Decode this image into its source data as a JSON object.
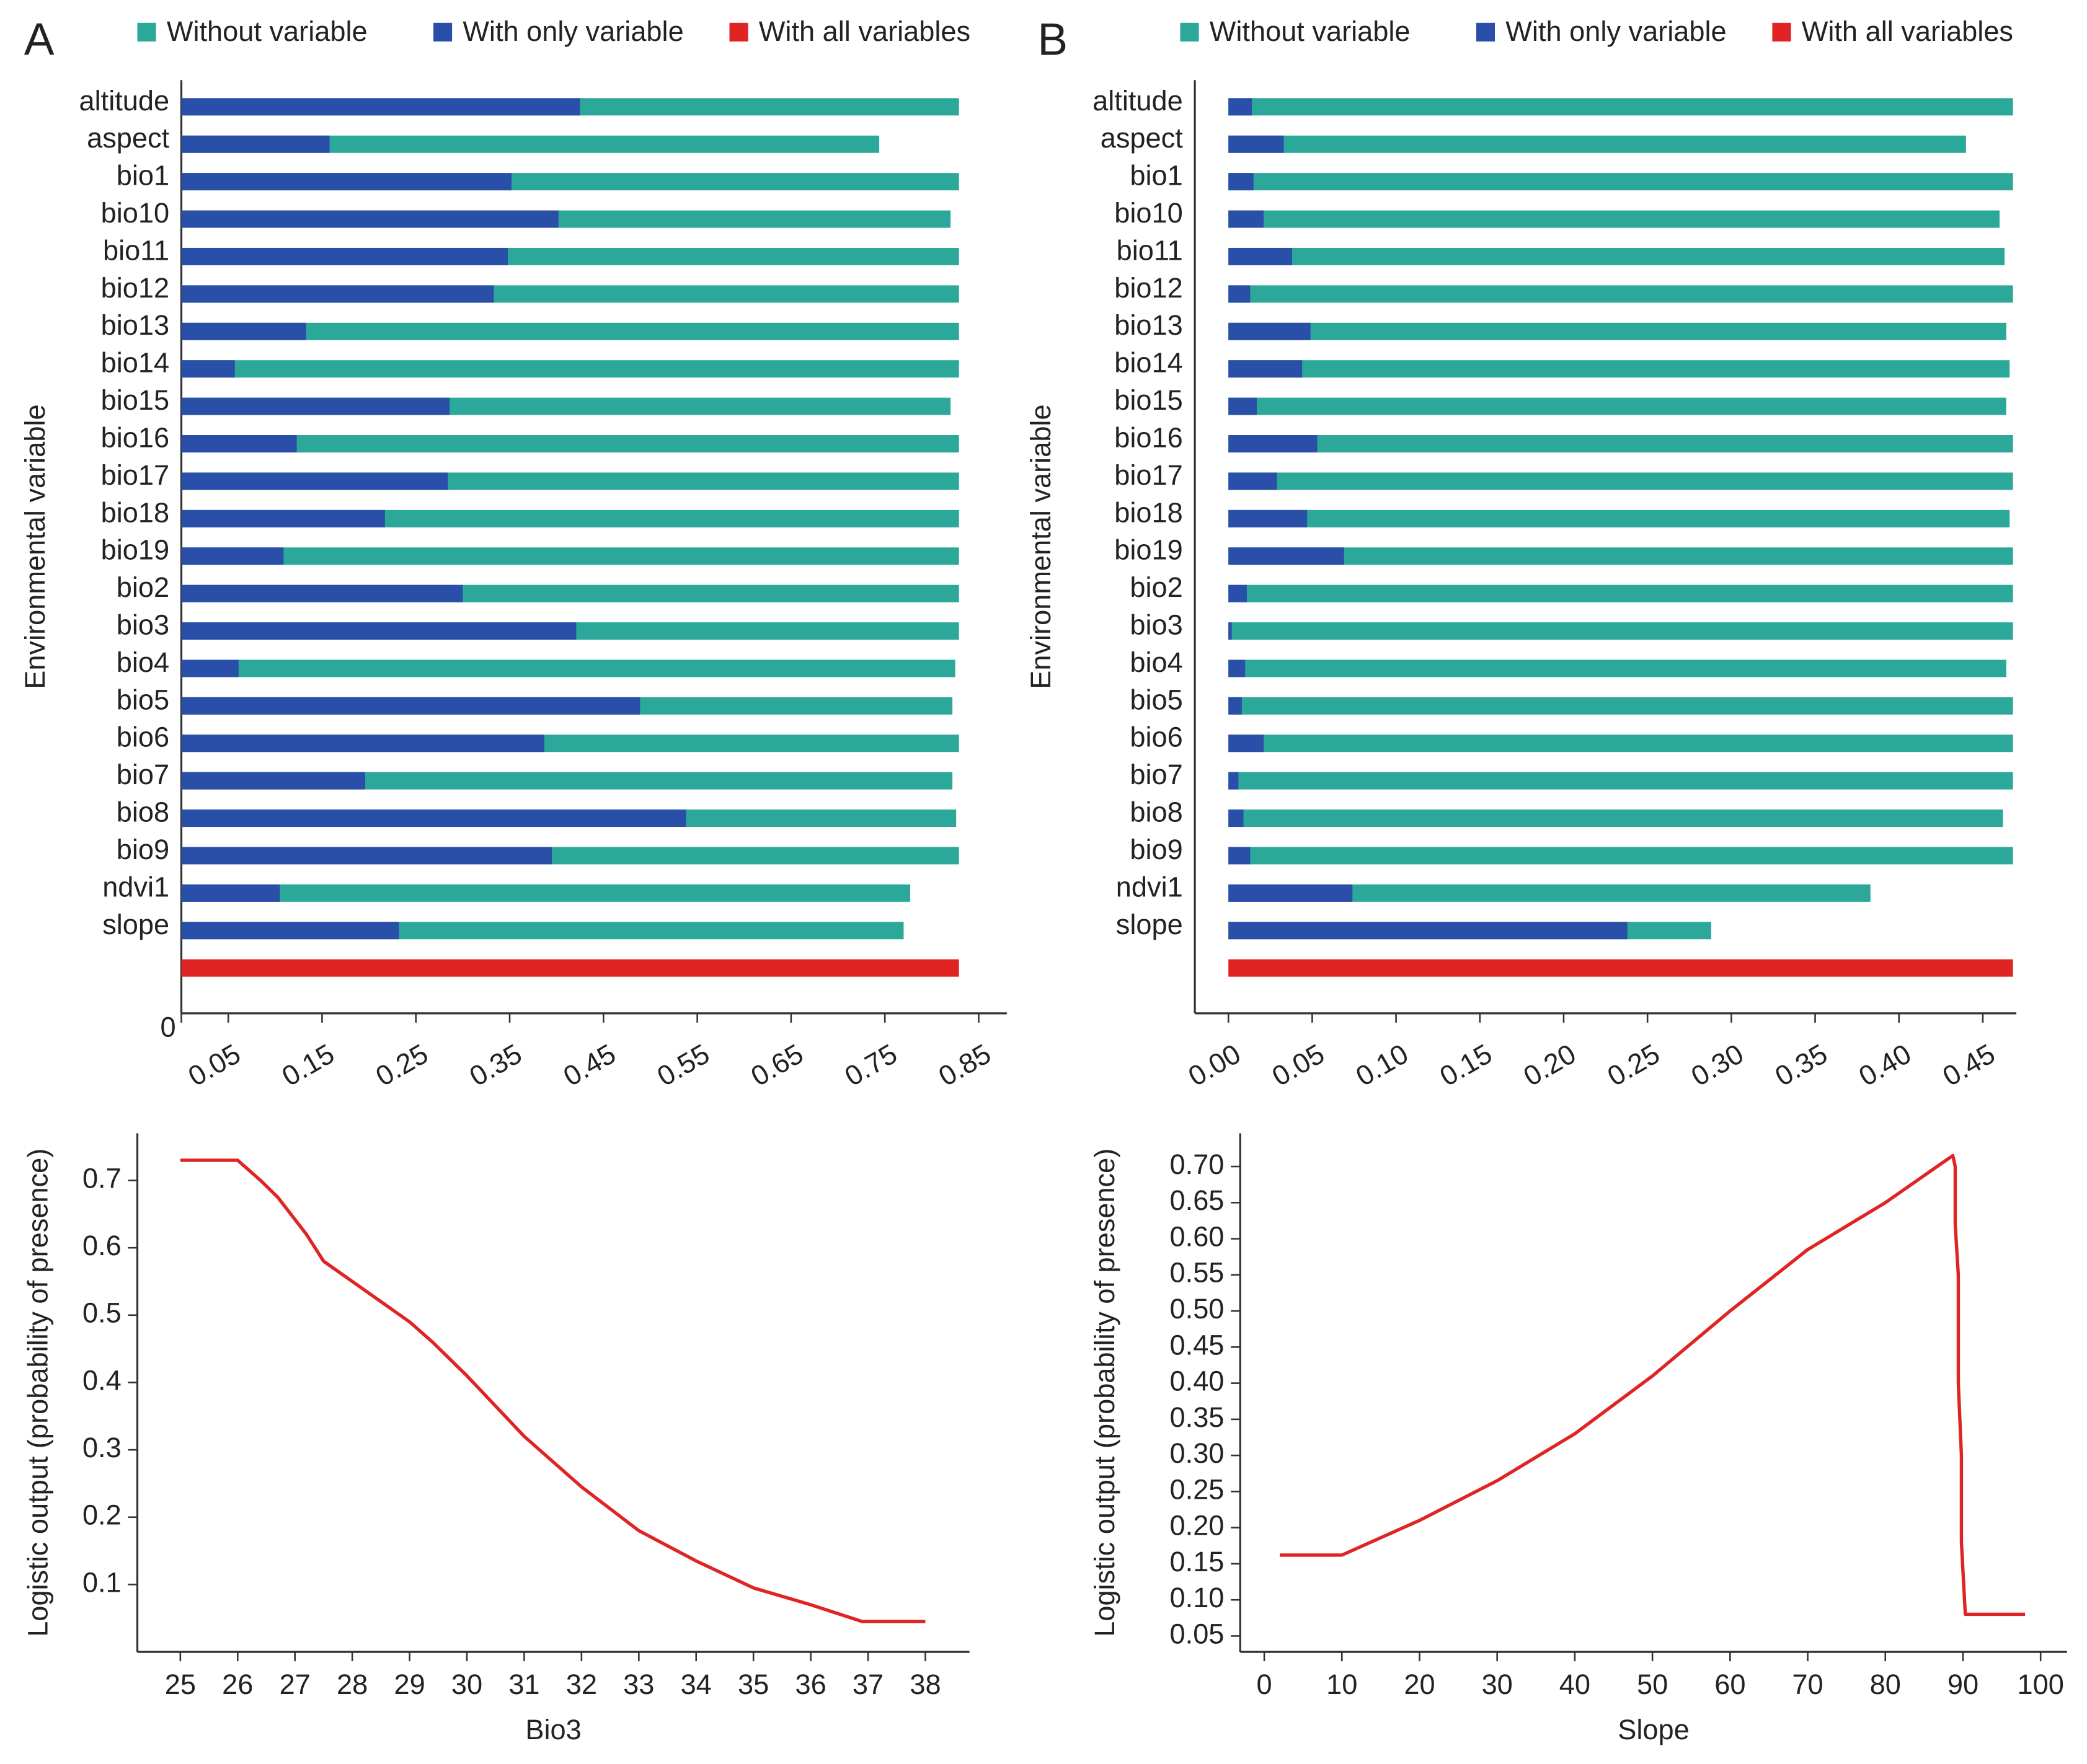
{
  "chart_data": [
    {
      "type": "bar",
      "orientation": "horizontal",
      "label": "A",
      "ylabel": "Environmental variable",
      "categories": [
        "altitude",
        "aspect",
        "bio1",
        "bio10",
        "bio11",
        "bio12",
        "bio13",
        "bio14",
        "bio15",
        "bio16",
        "bio17",
        "bio18",
        "bio19",
        "bio2",
        "bio3",
        "bio4",
        "bio5",
        "bio6",
        "bio7",
        "bio8",
        "bio9",
        "ndvi1",
        "slope",
        null
      ],
      "series": [
        {
          "name": "Without variable",
          "color": "#2ca89a",
          "values": [
            0.829,
            0.744,
            0.829,
            0.82,
            0.829,
            0.829,
            0.829,
            0.829,
            0.82,
            0.829,
            0.829,
            0.829,
            0.829,
            0.829,
            0.829,
            0.825,
            0.822,
            0.829,
            0.822,
            0.826,
            0.829,
            0.777,
            0.77,
            null
          ]
        },
        {
          "name": "With only variable",
          "color": "#2a4fa8",
          "values": [
            0.425,
            0.158,
            0.352,
            0.402,
            0.348,
            0.333,
            0.133,
            0.057,
            0.286,
            0.123,
            0.284,
            0.217,
            0.109,
            0.3,
            0.421,
            0.061,
            0.489,
            0.387,
            0.196,
            0.538,
            0.395,
            0.105,
            0.232,
            null
          ]
        },
        {
          "name": "With all variables",
          "color": "#e02424",
          "values": [
            null,
            null,
            null,
            null,
            null,
            null,
            null,
            null,
            null,
            null,
            null,
            null,
            null,
            null,
            null,
            null,
            null,
            null,
            null,
            null,
            null,
            null,
            null,
            0.829
          ]
        }
      ],
      "xlim": [
        0,
        0.88
      ],
      "xticks": [
        0,
        0.05,
        0.15,
        0.25,
        0.35,
        0.45,
        0.55,
        0.65,
        0.75,
        0.85
      ]
    },
    {
      "type": "bar",
      "orientation": "horizontal",
      "label": "B",
      "ylabel": "Environmental variable",
      "categories": [
        "altitude",
        "aspect",
        "bio1",
        "bio10",
        "bio11",
        "bio12",
        "bio13",
        "bio14",
        "bio15",
        "bio16",
        "bio17",
        "bio18",
        "bio19",
        "bio2",
        "bio3",
        "bio4",
        "bio5",
        "bio6",
        "bio7",
        "bio8",
        "bio9",
        "ndvi1",
        "slope",
        null
      ],
      "series": [
        {
          "name": "Without variable",
          "color": "#2ca89a",
          "values": [
            0.468,
            0.44,
            0.468,
            0.46,
            0.463,
            0.468,
            0.464,
            0.466,
            0.464,
            0.468,
            0.468,
            0.466,
            0.468,
            0.468,
            0.468,
            0.464,
            0.468,
            0.468,
            0.468,
            0.462,
            0.468,
            0.383,
            0.288,
            null
          ]
        },
        {
          "name": "With only variable",
          "color": "#2a4fa8",
          "values": [
            0.014,
            0.033,
            0.015,
            0.021,
            0.038,
            0.013,
            0.049,
            0.044,
            0.017,
            0.053,
            0.029,
            0.047,
            0.069,
            0.011,
            0.002,
            0.01,
            0.008,
            0.021,
            0.006,
            0.009,
            0.013,
            0.074,
            0.238,
            null
          ]
        },
        {
          "name": "With all variables",
          "color": "#e02424",
          "values": [
            null,
            null,
            null,
            null,
            null,
            null,
            null,
            null,
            null,
            null,
            null,
            null,
            null,
            null,
            null,
            null,
            null,
            null,
            null,
            null,
            null,
            null,
            null,
            0.468
          ]
        }
      ],
      "xlim": [
        -0.02,
        0.47
      ],
      "xticks": [
        {
          "value": 0,
          "label": "0.00"
        },
        0.05,
        {
          "value": 0.1,
          "label": "0.10"
        },
        0.15,
        {
          "value": 0.2,
          "label": "0.20"
        },
        0.25,
        {
          "value": 0.3,
          "label": "0.30"
        },
        0.35,
        {
          "value": 0.4,
          "label": "0.40"
        },
        0.45
      ]
    },
    {
      "type": "line",
      "xlabel": "Bio3",
      "ylabel": "Logistic output (probability of presence)",
      "color": "#e02424",
      "x": [
        25,
        26,
        26.4,
        26.7,
        27.2,
        27.5,
        28,
        29,
        29.4,
        30,
        31,
        32,
        33,
        34,
        35,
        36,
        36.9,
        38
      ],
      "values": [
        0.73,
        0.73,
        0.7,
        0.675,
        0.62,
        0.58,
        0.55,
        0.49,
        0.46,
        0.41,
        0.32,
        0.245,
        0.18,
        0.135,
        0.095,
        0.07,
        0.045,
        0.045
      ],
      "xlim": [
        24.25,
        38.77
      ],
      "xticks": [
        25,
        26,
        27,
        28,
        29,
        30,
        31,
        32,
        33,
        34,
        35,
        36,
        37,
        38
      ],
      "ylim": [
        0,
        0.77
      ],
      "yticks": [
        0.1,
        0.2,
        0.3,
        0.4,
        0.5,
        0.6,
        0.7
      ]
    },
    {
      "type": "line",
      "xlabel": "Slope",
      "ylabel": "Logistic output (probability of presence)",
      "color": "#e02424",
      "x": [
        2,
        10,
        20,
        30,
        40,
        50,
        60,
        70,
        80,
        88,
        88.7,
        89,
        89,
        89.4,
        89.4,
        89.8,
        89.8,
        90.3,
        98
      ],
      "values": [
        0.162,
        0.162,
        0.21,
        0.265,
        0.33,
        0.41,
        0.5,
        0.585,
        0.65,
        0.71,
        0.715,
        0.7,
        0.62,
        0.55,
        0.4,
        0.3,
        0.18,
        0.08,
        0.08
      ],
      "xlim": [
        -3.1,
        103.4
      ],
      "xticks": [
        0,
        10,
        20,
        30,
        40,
        50,
        60,
        70,
        80,
        90,
        100
      ],
      "ylim": [
        0.028,
        0.746
      ],
      "yticks": [
        0.05,
        {
          "value": 0.1,
          "label": "0.10"
        },
        0.15,
        {
          "value": 0.2,
          "label": "0.20"
        },
        0.25,
        {
          "value": 0.3,
          "label": "0.30"
        },
        0.35,
        {
          "value": 0.4,
          "label": "0.40"
        },
        0.45,
        {
          "value": 0.5,
          "label": "0.50"
        },
        0.55,
        {
          "value": 0.6,
          "label": "0.60"
        },
        0.65,
        {
          "value": 0.7,
          "label": "0.70"
        }
      ]
    }
  ]
}
